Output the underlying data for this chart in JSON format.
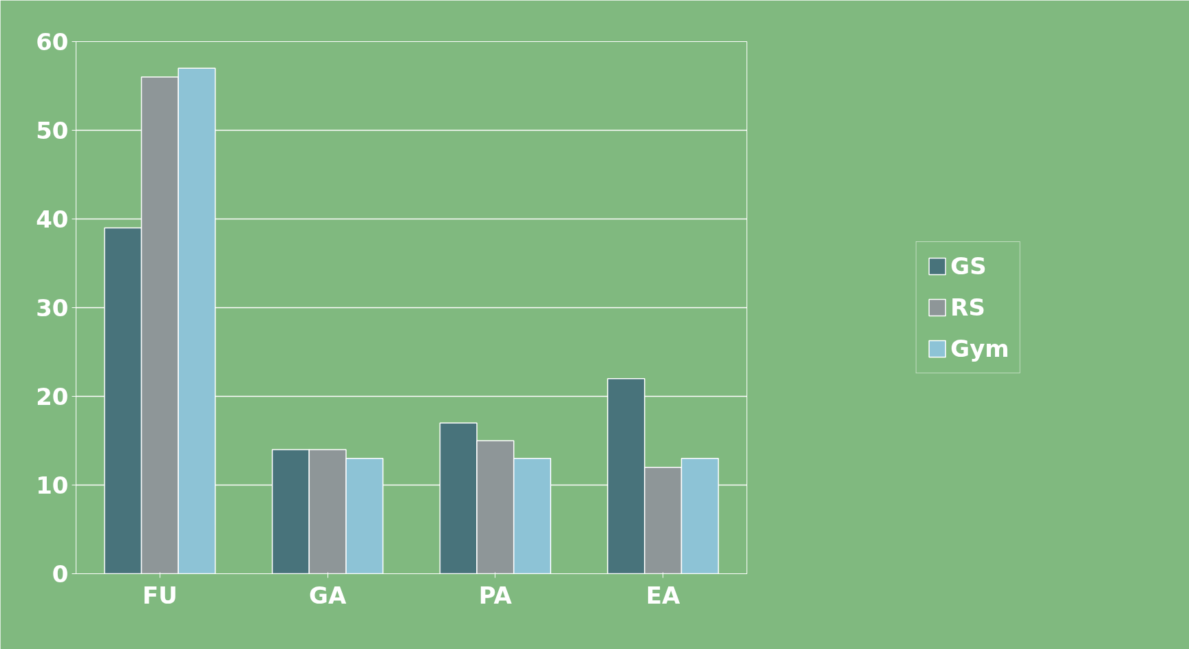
{
  "chart_data": {
    "type": "bar",
    "categories": [
      "FU",
      "GA",
      "PA",
      "EA"
    ],
    "series": [
      {
        "name": "GS",
        "color": "#48737b",
        "values": [
          39,
          14,
          17,
          22
        ]
      },
      {
        "name": "RS",
        "color": "#8e9698",
        "values": [
          56,
          14,
          15,
          12
        ]
      },
      {
        "name": "Gym",
        "color": "#8dc3d6",
        "values": [
          57,
          13,
          13,
          13
        ]
      }
    ],
    "ylim": [
      0,
      60
    ],
    "yticks": [
      0,
      10,
      20,
      30,
      40,
      50,
      60
    ],
    "grid": "y",
    "legend": "right"
  }
}
